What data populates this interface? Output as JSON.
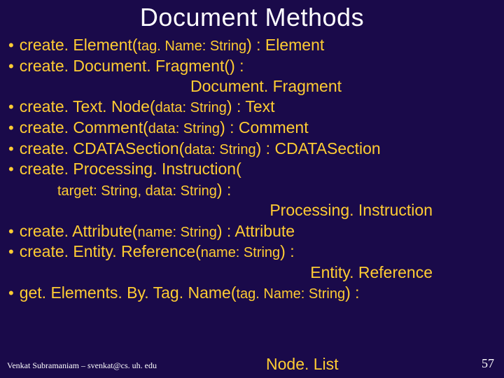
{
  "title": "Document Methods",
  "colors": {
    "background": "#1a0a4a",
    "title_color": "#ffffff",
    "text_color": "#ffcc33",
    "footer_color": "#ffffff"
  },
  "typography": {
    "title_fontsize": 36,
    "body_fontsize": 23,
    "param_fontsize": 20,
    "footer_fontsize": 12,
    "pagenum_fontsize": 18
  },
  "items": [
    {
      "method": "create. Element(",
      "params": "tag. Name: String",
      "close": ") : Element",
      "return_cont": null
    },
    {
      "method": "create. Document. Fragment() : ",
      "params": "",
      "close": "",
      "return_cont": "Document. Fragment"
    },
    {
      "method": "create. Text. Node(",
      "params": "data: String",
      "close": ") : Text",
      "return_cont": null
    },
    {
      "method": "create. Comment(",
      "params": "data: String",
      "close": ") : Comment",
      "return_cont": null
    },
    {
      "method": "create. CDATASection(",
      "params": "data: String",
      "close": ") : CDATASection",
      "return_cont": null
    },
    {
      "method": "create. Processing. Instruction(",
      "params": "",
      "close": "",
      "return_cont": null,
      "extra_params": "target: String, data: String",
      "extra_close": ") : ",
      "extra_return": "Processing. Instruction"
    },
    {
      "method": "create. Attribute(",
      "params": "name: String",
      "close": ") : Attribute",
      "return_cont": null
    },
    {
      "method": "create. Entity. Reference(",
      "params": "name: String",
      "close": ") : ",
      "return_cont": "Entity. Reference"
    },
    {
      "method": "get. Elements. By. Tag. Name(",
      "params": "tag. Name: String",
      "close": ") : ",
      "return_cont": null
    }
  ],
  "final_return": "Node. List",
  "footer": "Venkat Subramaniam – svenkat@cs. uh. edu",
  "page_number": "57"
}
